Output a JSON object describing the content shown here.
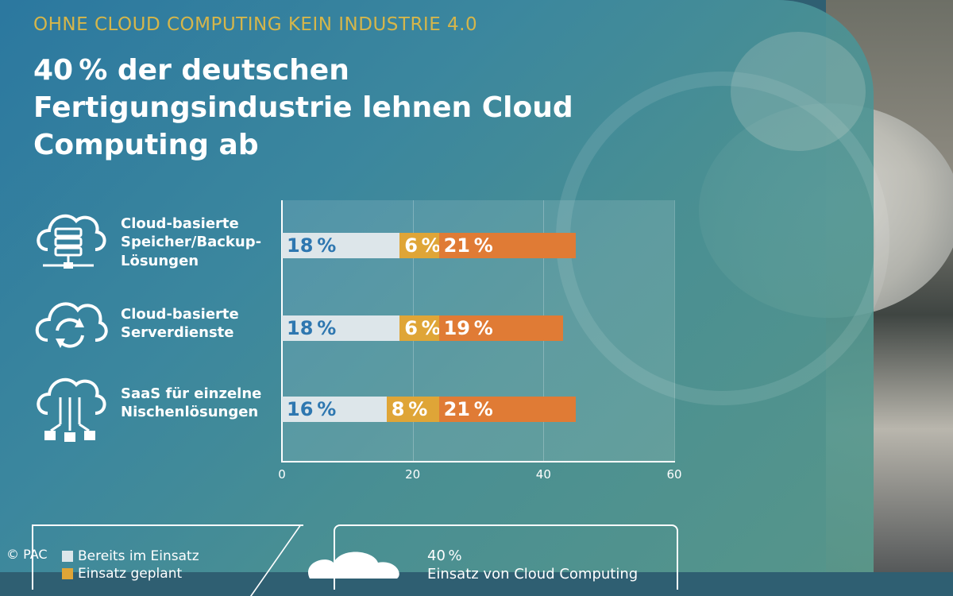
{
  "header": {
    "kicker": "OHNE CLOUD COMPUTING KEIN INDUSTRIE 4.0",
    "title": "40 % der deutschen Fertigungsindustrie lehnen Cloud Computing ab"
  },
  "colors": {
    "kicker": "#d6b64a",
    "bereits": "#dde6ea",
    "bereits_text": "#2e77b0",
    "geplant": "#dfa537",
    "geplant_text": "#ffffff",
    "third": "#e07b35",
    "third_text": "#ffffff"
  },
  "chart_data": {
    "type": "bar",
    "orientation": "horizontal",
    "stacked": true,
    "title": "40 % der deutschen Fertigungsindustrie lehnen Cloud Computing ab",
    "categories": [
      "Cloud-basierte Speicher/Backup-Lösungen",
      "Cloud-basierte Serverdienste",
      "SaaS für einzelne Nischenlösungen"
    ],
    "category_icons": [
      "cloud-server-icon",
      "cloud-sync-icon",
      "cloud-network-icon"
    ],
    "series": [
      {
        "name": "Bereits im Einsatz",
        "values": [
          18,
          18,
          16
        ],
        "labels": [
          "18 %",
          "18 %",
          "16 %"
        ]
      },
      {
        "name": "Einsatz geplant",
        "values": [
          6,
          6,
          8
        ],
        "labels": [
          "6 %",
          "6 %",
          "8 %"
        ]
      },
      {
        "name": "",
        "values": [
          21,
          19,
          21
        ],
        "labels": [
          "21 %",
          "19 %",
          "21 %"
        ]
      }
    ],
    "xlim": [
      0,
      60
    ],
    "xticks": [
      0,
      20,
      40,
      60
    ],
    "tick_labels": [
      "0",
      "20",
      "40",
      "60"
    ]
  },
  "legend": {
    "item1": "Bereits im Einsatz",
    "item2": "Einsatz geplant"
  },
  "callout": {
    "line1": "40 %",
    "line2": "Einsatz von Cloud Computing"
  },
  "credit": "© PAC"
}
